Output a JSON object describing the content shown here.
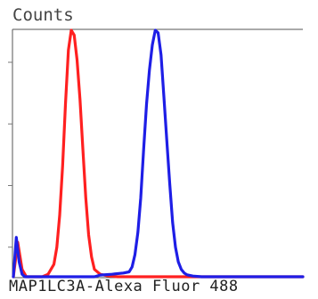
{
  "chart_data": {
    "type": "line",
    "ylabel": "Counts",
    "xlabel": "MAP1LC3A-Alexa Fluor 488",
    "xlim": [
      0,
      100
    ],
    "ylim": [
      0,
      100
    ],
    "grid": false,
    "series": [
      {
        "color": "#ff2020",
        "x": [
          0,
          1.5,
          3,
          4.5,
          6,
          8,
          10,
          12,
          14,
          15,
          16,
          17,
          18,
          19,
          20,
          21,
          22,
          23,
          24,
          25,
          26,
          27,
          28,
          30,
          32,
          34,
          36,
          40,
          50,
          70,
          100
        ],
        "y": [
          0,
          14,
          3,
          0,
          0,
          0,
          0,
          1,
          5,
          12,
          25,
          45,
          70,
          92,
          100,
          98,
          88,
          72,
          52,
          32,
          17,
          8,
          3,
          1,
          0.5,
          0.2,
          0,
          0,
          0,
          0,
          0
        ]
      },
      {
        "color": "#1e1ee6",
        "x": [
          0,
          1,
          2,
          3,
          4,
          6,
          10,
          20,
          28,
          30,
          34,
          38,
          40,
          41,
          42,
          43,
          44,
          45,
          46,
          47,
          48,
          49,
          50,
          51,
          52,
          53,
          54,
          55,
          56,
          57,
          58,
          59,
          60,
          62,
          65,
          70,
          100
        ],
        "y": [
          0,
          16,
          6,
          1,
          0,
          0,
          0,
          0,
          0,
          0.7,
          1,
          1.5,
          2,
          4,
          9,
          18,
          32,
          52,
          70,
          84,
          94,
          100,
          99,
          90,
          73,
          55,
          38,
          22,
          12,
          6,
          3,
          1.5,
          0.8,
          0.3,
          0,
          0,
          0
        ]
      }
    ]
  }
}
